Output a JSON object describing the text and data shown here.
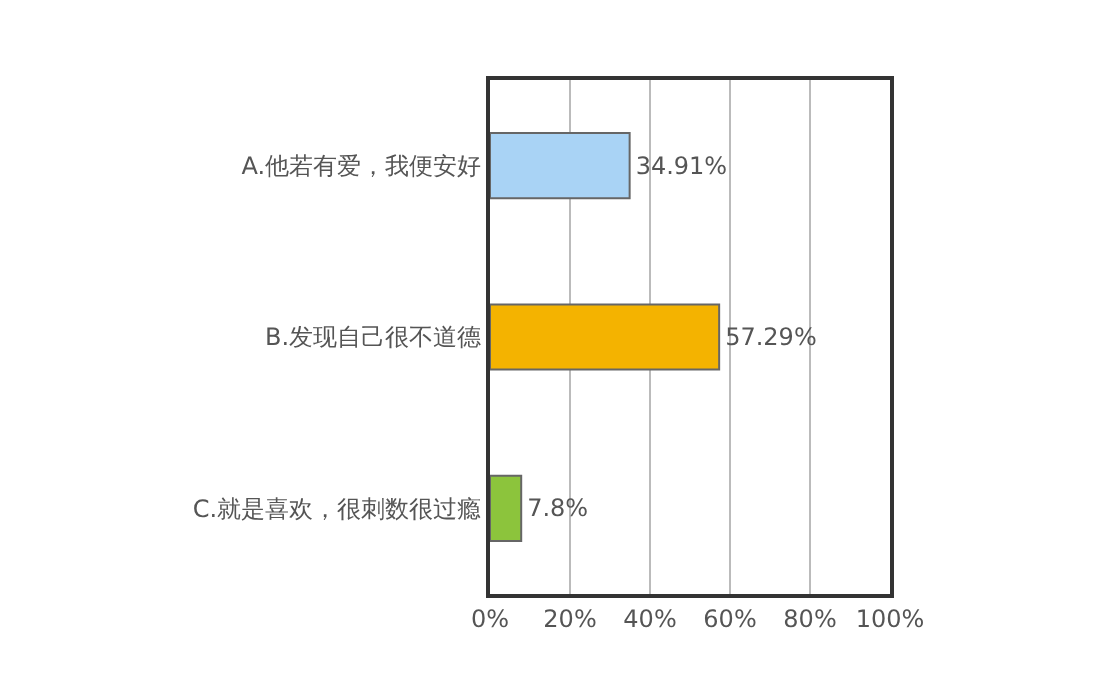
{
  "chart_data": {
    "type": "bar",
    "orientation": "horizontal",
    "categories": [
      "A.他若有爱，我便安好",
      "B.发现自己很不道德",
      "C.就是喜欢，很刺数很过瘾"
    ],
    "values": [
      34.91,
      57.29,
      7.8
    ],
    "colors": [
      "#a9d3f5",
      "#f4b300",
      "#8cc43c"
    ],
    "value_labels": [
      "34.91%",
      "57.29%",
      "7.8%"
    ],
    "xlim": [
      0,
      100
    ],
    "xticks": [
      {
        "value": 0,
        "label": "0%"
      },
      {
        "value": 20,
        "label": "20%"
      },
      {
        "value": 40,
        "label": "40%"
      },
      {
        "value": 60,
        "label": "60%"
      },
      {
        "value": 80,
        "label": "80%"
      },
      {
        "value": 100,
        "label": "100%"
      }
    ],
    "grid": "x"
  }
}
